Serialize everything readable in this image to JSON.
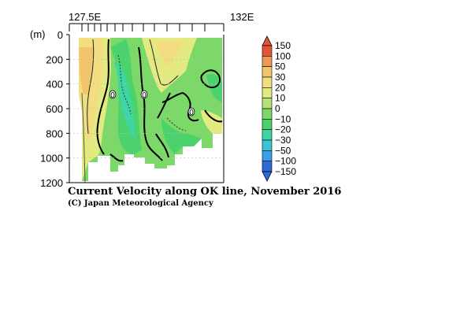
{
  "chart_data": {
    "type": "heatmap",
    "title": "Current Velocity along OK line, November 2016",
    "credit": "(C) Japan Meteorological Agency",
    "x_axis": {
      "tick_labels": [
        "127.5E",
        "132E"
      ]
    },
    "y_axis": {
      "unit_label": "(m)",
      "tick_labels": [
        "0",
        "200",
        "400",
        "600",
        "800",
        "1000",
        "1200"
      ],
      "range": [
        0,
        1200
      ]
    },
    "contour_labels": [
      "0",
      "0",
      "0"
    ],
    "colorbar": {
      "tick_labels": [
        "150",
        "100",
        "50",
        "30",
        "20",
        "10",
        "0",
        "−10",
        "−20",
        "−30",
        "−50",
        "−100",
        "−150"
      ],
      "colors": [
        "#e2553a",
        "#ef9a52",
        "#f2c46c",
        "#f2de80",
        "#e4ea82",
        "#b6e27c",
        "#7dd86a",
        "#4cd26c",
        "#3ed6a4",
        "#38c6d6",
        "#3aa0e6",
        "#2f6ad8"
      ]
    }
  }
}
